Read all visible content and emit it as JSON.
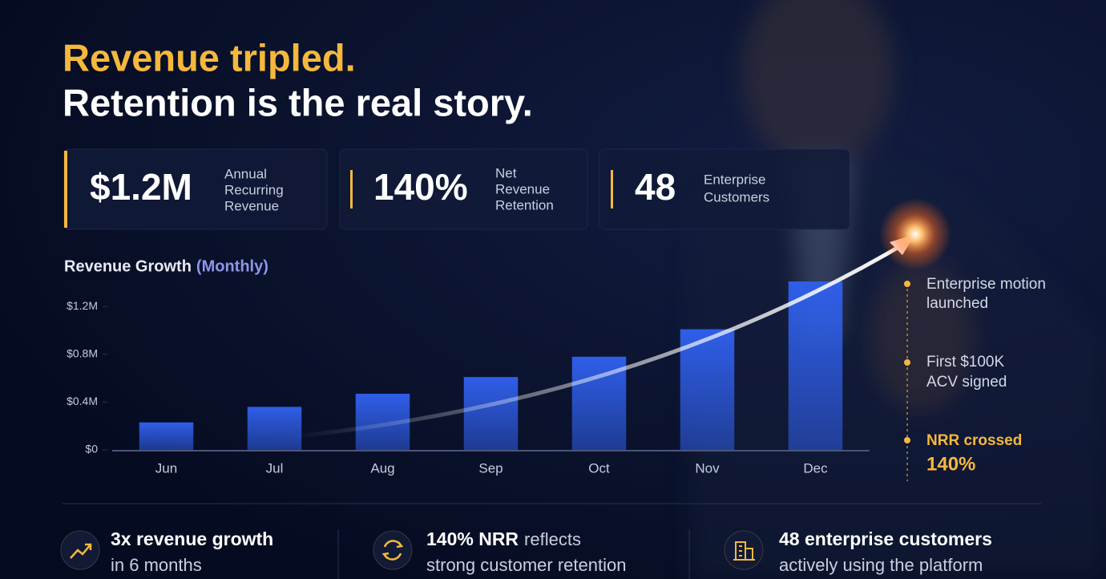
{
  "headline": {
    "line1": "Revenue tripled.",
    "line2": "Retention is the real story."
  },
  "kpis": [
    {
      "value": "$1.2M",
      "label": [
        "Annual",
        "Recurring",
        "Revenue"
      ]
    },
    {
      "value": "140%",
      "label": [
        "Net",
        "Revenue",
        "Retention"
      ]
    },
    {
      "value": "48",
      "label": [
        "Enterprise",
        "Customers"
      ]
    }
  ],
  "chart_data": {
    "type": "bar",
    "title": "Revenue Growth",
    "subtitle": "(Monthly)",
    "categories": [
      "Jun",
      "Jul",
      "Aug",
      "Sep",
      "Oct",
      "Nov",
      "Dec"
    ],
    "values": [
      0.23,
      0.36,
      0.47,
      0.61,
      0.78,
      1.01,
      1.41
    ],
    "color": "#2f5ee8",
    "ylim": [
      0,
      1.45
    ],
    "yticks": [
      {
        "value": 0,
        "label": "$0"
      },
      {
        "value": 0.4,
        "label": "$0.4M"
      },
      {
        "value": 0.8,
        "label": "$0.8M"
      },
      {
        "value": 1.2,
        "label": "$1.2M"
      }
    ]
  },
  "milestones": [
    {
      "lines": [
        "Enterprise motion",
        "launched"
      ]
    },
    {
      "lines": [
        "First $100K",
        "ACV signed"
      ]
    },
    {
      "lines": [
        "NRR crossed",
        "140%"
      ]
    }
  ],
  "highlights": [
    {
      "bold": "3x revenue growth",
      "line2": "in 6 months"
    },
    {
      "bold": "140% NRR",
      "rest": "reflects",
      "line2": "strong customer retention"
    },
    {
      "bold": "48 enterprise customers",
      "line2": "actively using the platform"
    }
  ]
}
